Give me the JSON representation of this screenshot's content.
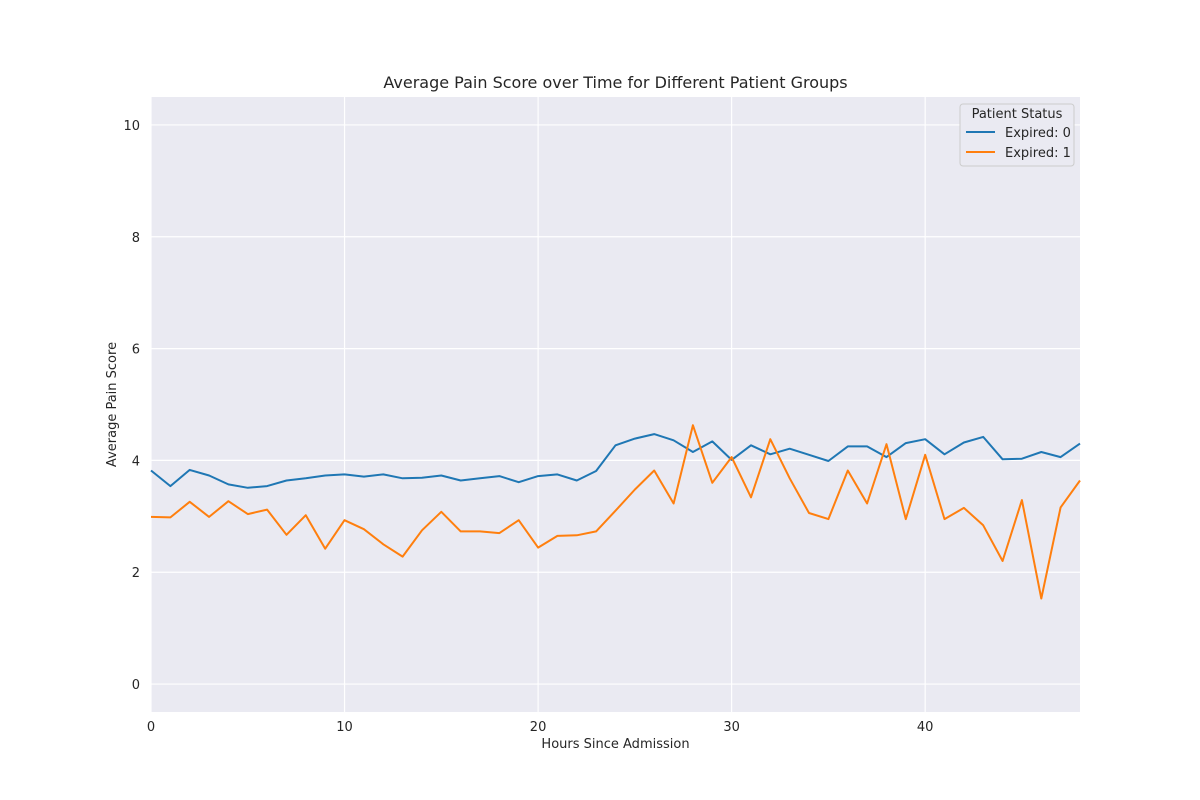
{
  "chart_data": {
    "type": "line",
    "title": "Average Pain Score over Time for Different Patient Groups",
    "xlabel": "Hours Since Admission",
    "ylabel": "Average Pain Score",
    "xlim": [
      0,
      48
    ],
    "ylim": [
      -0.5,
      10.5
    ],
    "xticks": [
      0,
      10,
      20,
      30,
      40
    ],
    "yticks": [
      0,
      2,
      4,
      6,
      8,
      10
    ],
    "grid": true,
    "legend": {
      "title": "Patient Status",
      "placement": "top-right"
    },
    "colors": {
      "background": "#eaeaf2",
      "grid": "#ffffff"
    },
    "x": [
      0,
      1,
      2,
      3,
      4,
      5,
      6,
      7,
      8,
      9,
      10,
      11,
      12,
      13,
      14,
      15,
      16,
      17,
      18,
      19,
      20,
      21,
      22,
      23,
      24,
      25,
      26,
      27,
      28,
      29,
      30,
      31,
      32,
      33,
      34,
      35,
      36,
      37,
      38,
      39,
      40,
      41,
      42,
      43,
      44,
      45,
      46,
      47,
      48
    ],
    "series": [
      {
        "name": "Expired: 0",
        "color": "#1f77b4",
        "values": [
          3.82,
          3.54,
          3.83,
          3.73,
          3.57,
          3.51,
          3.54,
          3.64,
          3.68,
          3.73,
          3.75,
          3.71,
          3.75,
          3.68,
          3.69,
          3.73,
          3.64,
          3.68,
          3.72,
          3.61,
          3.72,
          3.75,
          3.64,
          3.81,
          4.27,
          4.39,
          4.47,
          4.36,
          4.15,
          4.34,
          4.01,
          4.27,
          4.11,
          4.21,
          4.1,
          3.99,
          4.25,
          4.25,
          4.06,
          4.31,
          4.38,
          4.11,
          4.32,
          4.42,
          4.02,
          4.03,
          4.15,
          4.06,
          4.3
        ]
      },
      {
        "name": "Expired: 1",
        "color": "#ff7f0e",
        "values": [
          2.99,
          2.98,
          3.26,
          2.99,
          3.27,
          3.04,
          3.12,
          2.67,
          3.02,
          2.42,
          2.93,
          2.77,
          2.5,
          2.28,
          2.75,
          3.08,
          2.73,
          2.73,
          2.7,
          2.93,
          2.44,
          2.65,
          2.66,
          2.73,
          3.1,
          3.48,
          3.82,
          3.23,
          4.63,
          3.6,
          4.06,
          3.34,
          4.38,
          3.68,
          3.06,
          2.95,
          3.82,
          3.23,
          4.29,
          2.95,
          4.1,
          2.95,
          3.15,
          2.84,
          2.2,
          3.29,
          1.53,
          3.16,
          3.64
        ]
      }
    ]
  }
}
